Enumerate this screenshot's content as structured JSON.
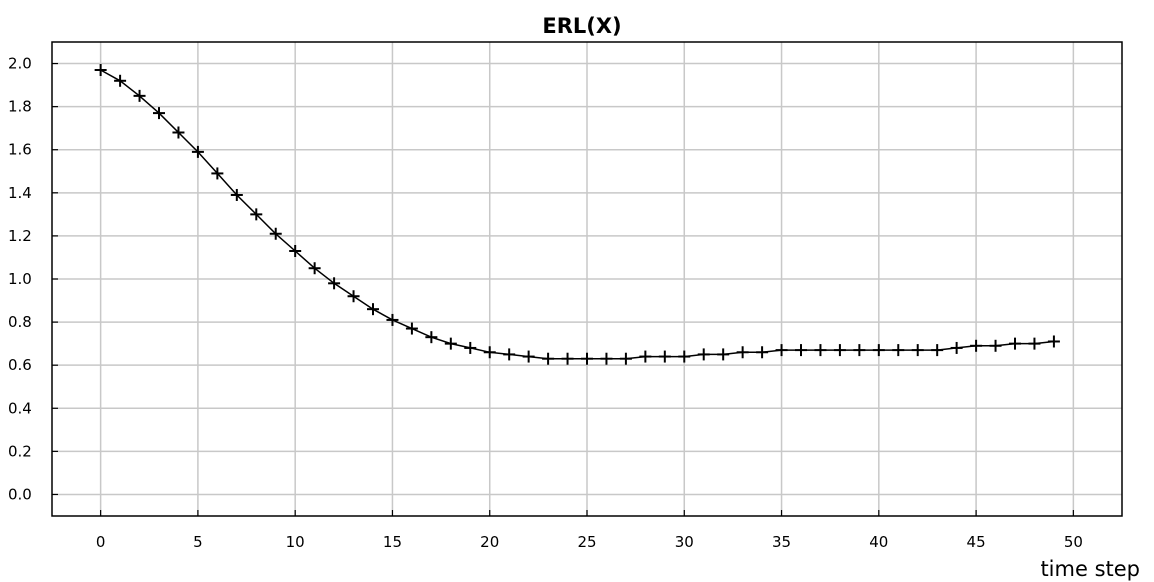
{
  "chart_data": {
    "type": "line",
    "title": "ERL(X)",
    "xlabel": "time step",
    "ylabel": "",
    "xlim": [
      -2.5,
      52.5
    ],
    "ylim": [
      -0.1,
      2.1
    ],
    "xticks": [
      0,
      5,
      10,
      15,
      20,
      25,
      30,
      35,
      40,
      45,
      50
    ],
    "yticks": [
      0.0,
      0.2,
      0.4,
      0.6,
      0.8,
      1.0,
      1.2,
      1.4,
      1.6,
      1.8,
      2.0
    ],
    "ytick_labels": [
      "0.0",
      "0.2",
      "0.4",
      "0.6",
      "0.8",
      "1.0",
      "1.2",
      "1.4",
      "1.6",
      "1.8",
      "2.0"
    ],
    "grid": true,
    "marker": "plus",
    "series": [
      {
        "x": [
          0,
          1,
          2,
          3,
          4,
          5,
          6,
          7,
          8,
          9,
          10,
          11,
          12,
          13,
          14,
          15,
          16,
          17,
          18,
          19,
          20,
          21,
          22,
          23,
          24,
          25,
          26,
          27,
          28,
          29,
          30,
          31,
          32,
          33,
          34,
          35,
          36,
          37,
          38,
          39,
          40,
          41,
          42,
          43,
          44,
          45,
          46,
          47,
          48,
          49
        ],
        "values": [
          1.97,
          1.92,
          1.85,
          1.77,
          1.68,
          1.59,
          1.49,
          1.39,
          1.3,
          1.21,
          1.13,
          1.05,
          0.98,
          0.92,
          0.86,
          0.81,
          0.77,
          0.73,
          0.7,
          0.68,
          0.66,
          0.65,
          0.64,
          0.63,
          0.63,
          0.63,
          0.63,
          0.63,
          0.64,
          0.64,
          0.64,
          0.65,
          0.65,
          0.66,
          0.66,
          0.67,
          0.67,
          0.67,
          0.67,
          0.67,
          0.67,
          0.67,
          0.67,
          0.67,
          0.68,
          0.69,
          0.69,
          0.7,
          0.7,
          0.71
        ],
        "color": "#000000"
      }
    ]
  }
}
